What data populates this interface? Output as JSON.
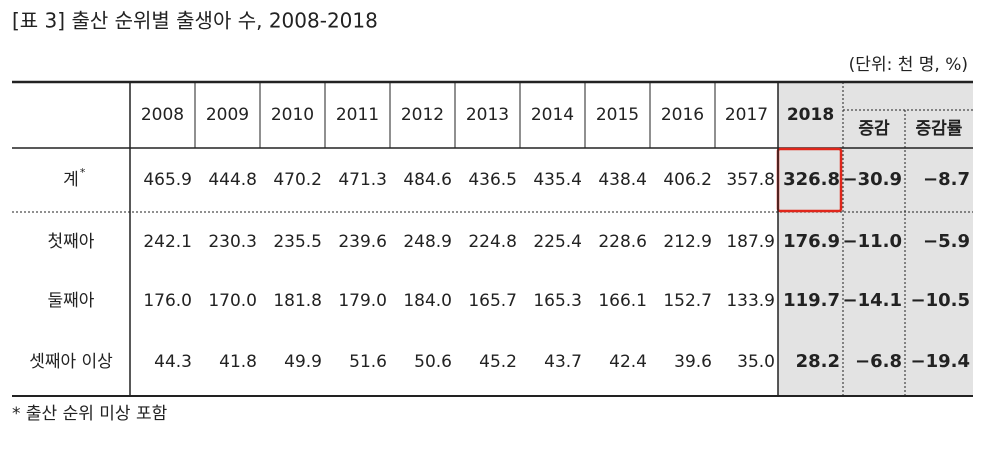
{
  "header": {
    "title": "[표 3] 출산 순위별 출생아 수, 2008-2018",
    "unit": "(단위: 천 명, %)"
  },
  "table": {
    "columns": [
      "2008",
      "2009",
      "2010",
      "2011",
      "2012",
      "2013",
      "2014",
      "2015",
      "2016",
      "2017",
      "2018"
    ],
    "sub_columns": [
      "증감",
      "증감률"
    ],
    "rows": [
      {
        "label": "계",
        "note_mark": "*",
        "cells": [
          "465.9",
          "444.8",
          "470.2",
          "471.3",
          "484.6",
          "436.5",
          "435.4",
          "438.4",
          "406.2",
          "357.8",
          "326.8",
          "−30.9",
          "−8.7"
        ]
      },
      {
        "label": "첫째아",
        "cells": [
          "242.1",
          "230.3",
          "235.5",
          "239.6",
          "248.9",
          "224.8",
          "225.4",
          "228.6",
          "212.9",
          "187.9",
          "176.9",
          "−11.0",
          "−5.9"
        ]
      },
      {
        "label": "둘째아",
        "cells": [
          "176.0",
          "170.0",
          "181.8",
          "179.0",
          "184.0",
          "165.7",
          "165.3",
          "166.1",
          "152.7",
          "133.9",
          "119.7",
          "−14.1",
          "−10.5"
        ]
      },
      {
        "label": "셋째아 이상",
        "cells": [
          "44.3",
          "41.8",
          "49.9",
          "51.6",
          "50.6",
          "45.2",
          "43.7",
          "42.4",
          "39.6",
          "35.0",
          "28.2",
          "−6.8",
          "−19.4"
        ]
      }
    ]
  },
  "footnote": "* 출산 순위 미상 포함"
}
